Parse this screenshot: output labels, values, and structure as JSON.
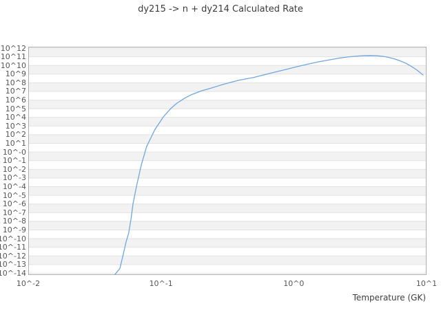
{
  "chart_data": {
    "type": "line",
    "title": "dy215 -> n + dy214 Calculated Rate",
    "xlabel": "Temperature (GK)",
    "ylabel": "",
    "x_scale": "log",
    "y_scale": "log",
    "xlim": [
      "1e-2",
      "1e1"
    ],
    "ylim": [
      "1e-14",
      "1e12"
    ],
    "x_tick_labels": [
      "10^-2",
      "10^-1",
      "10^0",
      "10^1"
    ],
    "y_tick_labels": [
      "10^12",
      "10^11",
      "10^10",
      "10^9",
      "10^8",
      "10^7",
      "10^6",
      "10^5",
      "10^4",
      "10^3",
      "10^2",
      "10^1",
      "10^-0",
      "10^-1",
      "10^-2",
      "10^-3",
      "10^-4",
      "10^-5",
      "10^-6",
      "10^-7",
      "10^-8",
      "10^-9",
      "10^-10",
      "10^-11",
      "10^-12",
      "10^-13",
      "10^-14"
    ],
    "grid": "horizontal-bands-alternating",
    "legend": "none",
    "colors": {
      "line": "#6ea6e0",
      "band": "#f2f2f2",
      "gridline": "#e2e2e2",
      "border": "#adadad",
      "tick_text": "#555555",
      "title_text": "#3c3c3c",
      "background": "#ffffff"
    },
    "series": [
      {
        "name": "calculated rate",
        "points_t_gk_vs_log10_rate": [
          [
            0.0435,
            -14.4
          ],
          [
            0.049,
            -13.45
          ],
          [
            0.0505,
            -12.6
          ],
          [
            0.052,
            -11.8
          ],
          [
            0.0545,
            -10.4
          ],
          [
            0.057,
            -9.4
          ],
          [
            0.0595,
            -7.7
          ],
          [
            0.0615,
            -6.0
          ],
          [
            0.0655,
            -3.9
          ],
          [
            0.071,
            -1.5
          ],
          [
            0.078,
            0.65
          ],
          [
            0.09,
            2.6
          ],
          [
            0.104,
            4.05
          ],
          [
            0.118,
            5.0
          ],
          [
            0.132,
            5.65
          ],
          [
            0.15,
            6.2
          ],
          [
            0.168,
            6.6
          ],
          [
            0.2,
            7.05
          ],
          [
            0.24,
            7.4
          ],
          [
            0.3,
            7.85
          ],
          [
            0.387,
            8.3
          ],
          [
            0.5,
            8.62
          ],
          [
            0.575,
            8.85
          ],
          [
            0.7,
            9.18
          ],
          [
            0.853,
            9.5
          ],
          [
            1.05,
            9.85
          ],
          [
            1.28,
            10.15
          ],
          [
            1.55,
            10.43
          ],
          [
            1.9,
            10.67
          ],
          [
            2.2,
            10.85
          ],
          [
            2.62,
            11.0
          ],
          [
            3.0,
            11.08
          ],
          [
            3.4,
            11.13
          ],
          [
            3.8,
            11.14
          ],
          [
            4.2,
            11.12
          ],
          [
            4.7,
            11.05
          ],
          [
            5.12,
            10.95
          ],
          [
            5.7,
            10.77
          ],
          [
            6.27,
            10.55
          ],
          [
            7.0,
            10.25
          ],
          [
            7.67,
            9.9
          ],
          [
            8.5,
            9.45
          ],
          [
            9.4,
            8.9
          ]
        ]
      }
    ]
  }
}
